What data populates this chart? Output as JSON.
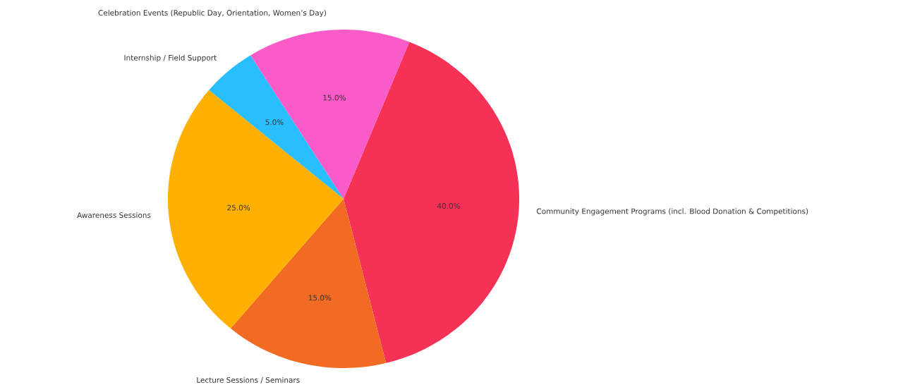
{
  "chart_data": {
    "type": "pie",
    "categories": [
      "Community Engagement Programs (incl. Blood Donation & Competitions)",
      "Lecture Sessions / Seminars",
      "Awareness Sessions",
      "Internship / Field Support",
      "Celebration Events (Republic Day, Orientation, Women’s Day)"
    ],
    "values": [
      40,
      15,
      25,
      5,
      15
    ],
    "colors": [
      "#f53155",
      "#f26b22",
      "#ffb000",
      "#29bfff",
      "#f95bc8"
    ],
    "value_labels": [
      "40.0%",
      "15.0%",
      "25.0%",
      "5.0%",
      "15.0%"
    ]
  }
}
